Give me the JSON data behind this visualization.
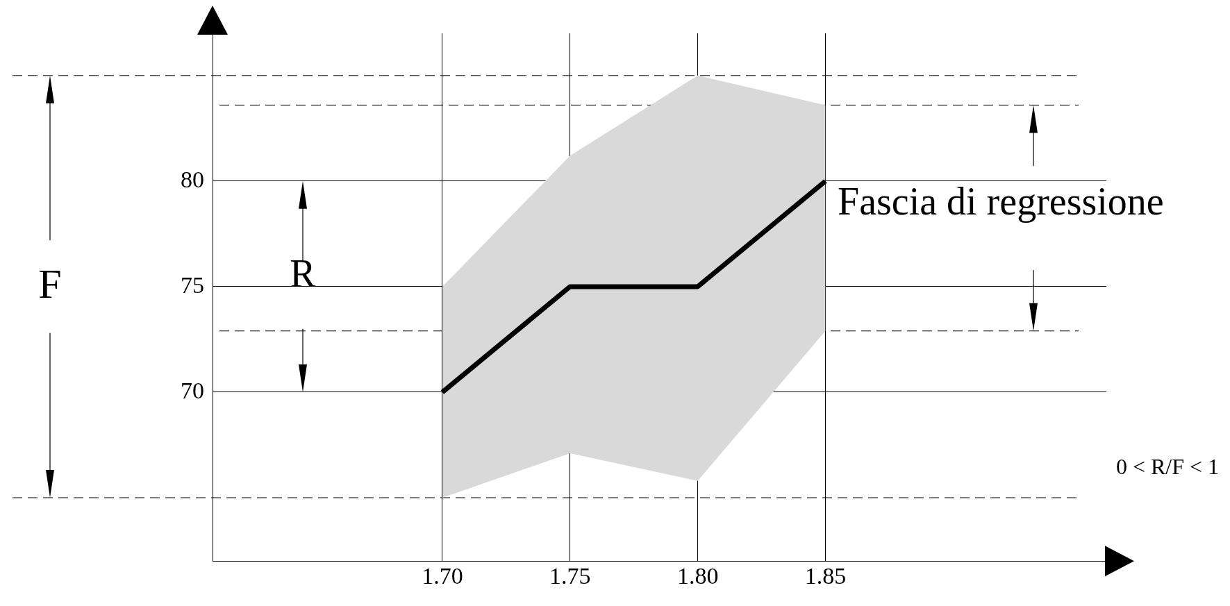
{
  "chart_data": {
    "type": "line",
    "xlim": [
      1.61,
      1.96
    ],
    "xticks": [
      {
        "value": 1.7,
        "label": "1.70"
      },
      {
        "value": 1.75,
        "label": "1.75"
      },
      {
        "value": 1.8,
        "label": "1.80"
      },
      {
        "value": 1.85,
        "label": "1.85"
      }
    ],
    "ylim": [
      62,
      87
    ],
    "yticks": [
      70,
      75,
      80
    ],
    "grid": true,
    "legend": false,
    "marker": "none",
    "series": [
      {
        "color": "#000000",
        "x": [
          1.7,
          1.75,
          1.8,
          1.85
        ],
        "values": [
          70,
          75,
          75,
          80
        ],
        "lower": [
          65,
          67.1,
          65.8,
          72.9
        ],
        "upper": [
          75,
          81.2,
          85,
          83.6
        ]
      }
    ],
    "ref_lines": [
      {
        "axis": "y",
        "value": 85,
        "line_style": "dashed",
        "color": "#000000"
      },
      {
        "axis": "y",
        "value": 65,
        "line_style": "dashed",
        "color": "#000000"
      },
      {
        "axis": "y",
        "value": 83.6,
        "line_style": "dashed",
        "color": "#000000"
      },
      {
        "axis": "y",
        "value": 72.9,
        "line_style": "dashed",
        "color": "#000000"
      }
    ],
    "annotations": [
      "F",
      "R",
      "Fascia di regressione",
      "0 < R/F < 1"
    ]
  }
}
